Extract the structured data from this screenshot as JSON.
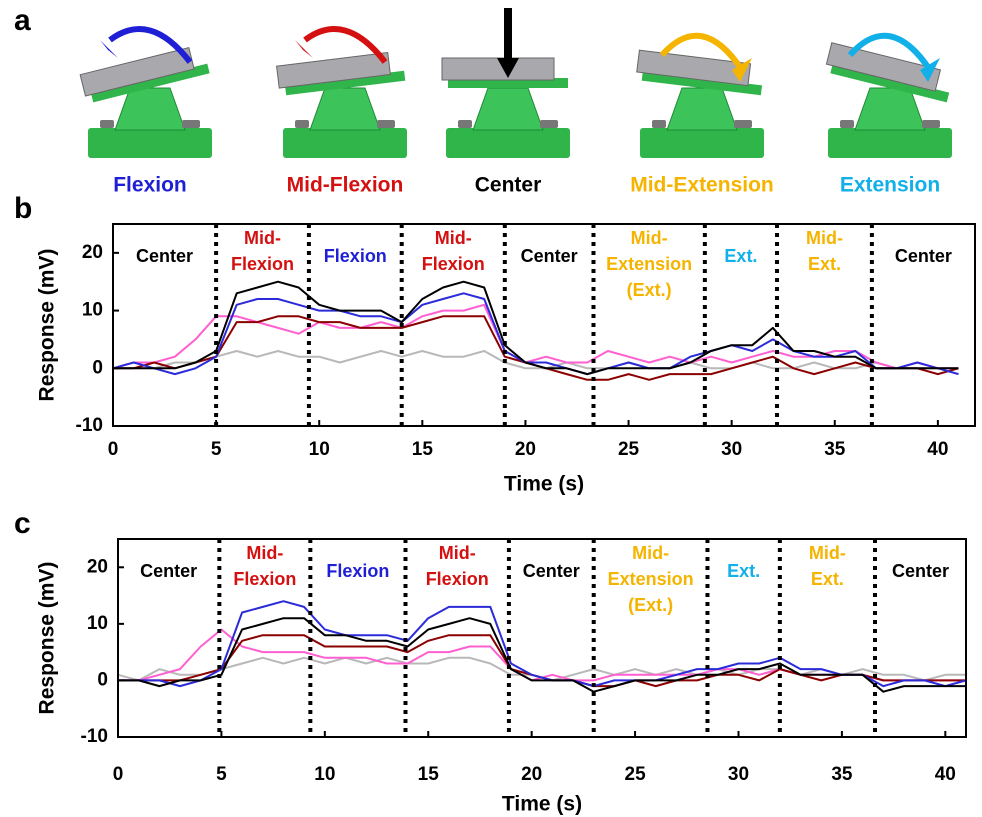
{
  "panel_a": {
    "label": "a",
    "items": [
      {
        "caption": "Flexion",
        "color": "#1f1fd6"
      },
      {
        "caption": "Mid-Flexion",
        "color": "#d41010"
      },
      {
        "caption": "Center",
        "color": "#000000"
      },
      {
        "caption": "Mid-Extension",
        "color": "#f5b400"
      },
      {
        "caption": "Extension",
        "color": "#12b0e8"
      }
    ]
  },
  "chart_data": [
    {
      "type": "line",
      "panel_label": "b",
      "xlabel": "Time (s)",
      "ylabel": "Response (mV)",
      "xlim": [
        0,
        41.8
      ],
      "ylim": [
        -10,
        25
      ],
      "xticks": [
        0,
        5,
        10,
        15,
        20,
        25,
        30,
        35,
        40
      ],
      "yticks": [
        -10,
        0,
        10,
        20
      ],
      "dividers": [
        5,
        9.5,
        14,
        19,
        23.3,
        28.7,
        32.2,
        36.8
      ],
      "regions": [
        {
          "lines": [
            "Center"
          ],
          "color": "#000000"
        },
        {
          "lines": [
            "Mid-",
            "Flexion"
          ],
          "color": "#d41010"
        },
        {
          "lines": [
            "Flexion"
          ],
          "color": "#1f1fd6"
        },
        {
          "lines": [
            "Mid-",
            "Flexion"
          ],
          "color": "#d41010"
        },
        {
          "lines": [
            "Center"
          ],
          "color": "#000000"
        },
        {
          "lines": [
            "Mid-",
            "Extension",
            "(Ext.)"
          ],
          "color": "#f5b400"
        },
        {
          "lines": [
            "Ext."
          ],
          "color": "#12b0e8"
        },
        {
          "lines": [
            "Mid-",
            "Ext."
          ],
          "color": "#f5b400"
        },
        {
          "lines": [
            "Center"
          ],
          "color": "#000000"
        }
      ],
      "x": [
        0,
        1,
        2,
        3,
        4,
        5,
        6,
        7,
        8,
        9,
        10,
        11,
        12,
        13,
        14,
        15,
        16,
        17,
        18,
        19,
        20,
        21,
        22,
        23,
        24,
        25,
        26,
        27,
        28,
        29,
        30,
        31,
        32,
        33,
        34,
        35,
        36,
        37,
        38,
        39,
        40,
        41
      ],
      "series": [
        {
          "color": "#b8b8b8",
          "values": [
            0,
            0,
            0,
            1,
            1,
            2,
            3,
            2,
            3,
            2,
            2,
            1,
            2,
            3,
            2,
            3,
            2,
            2,
            3,
            1,
            0,
            0,
            1,
            0,
            0,
            1,
            0,
            0,
            1,
            0,
            0,
            1,
            0,
            0,
            1,
            0,
            0,
            1,
            0,
            0,
            0,
            0
          ]
        },
        {
          "color": "#ff5fd0",
          "values": [
            0,
            1,
            1,
            2,
            5,
            9,
            9,
            8,
            7,
            6,
            8,
            7,
            7,
            8,
            7,
            9,
            10,
            10,
            11,
            3,
            1,
            2,
            1,
            1,
            3,
            2,
            1,
            2,
            1,
            2,
            1,
            2,
            3,
            2,
            2,
            3,
            3,
            1,
            0,
            1,
            0,
            0
          ]
        },
        {
          "color": "#8b0000",
          "values": [
            0,
            0,
            1,
            0,
            1,
            2,
            8,
            8,
            9,
            9,
            8,
            8,
            7,
            7,
            7,
            8,
            9,
            9,
            9,
            2,
            1,
            0,
            -1,
            -2,
            -2,
            -1,
            -2,
            -1,
            -1,
            -1,
            0,
            1,
            2,
            0,
            -1,
            0,
            1,
            0,
            0,
            0,
            -1,
            0
          ]
        },
        {
          "color": "#2b2bd9",
          "values": [
            0,
            1,
            0,
            -1,
            0,
            2,
            11,
            12,
            12,
            11,
            10,
            10,
            9,
            9,
            8,
            11,
            12,
            13,
            12,
            3,
            1,
            1,
            0,
            -1,
            0,
            1,
            0,
            0,
            2,
            3,
            4,
            3,
            5,
            3,
            2,
            2,
            3,
            0,
            0,
            1,
            0,
            -1
          ]
        },
        {
          "color": "#000000",
          "values": [
            0,
            0,
            0,
            0,
            1,
            3,
            13,
            14,
            15,
            14,
            11,
            10,
            10,
            10,
            8,
            12,
            14,
            15,
            14,
            4,
            1,
            0,
            0,
            -1,
            0,
            0,
            0,
            0,
            1,
            3,
            4,
            4,
            7,
            3,
            3,
            2,
            2,
            0,
            0,
            0,
            0,
            0
          ]
        }
      ]
    },
    {
      "type": "line",
      "panel_label": "c",
      "xlabel": "Time (s)",
      "ylabel": "Response (mV)",
      "xlim": [
        0,
        41
      ],
      "ylim": [
        -10,
        25
      ],
      "xticks": [
        0,
        5,
        10,
        15,
        20,
        25,
        30,
        35,
        40
      ],
      "yticks": [
        -10,
        0,
        10,
        20
      ],
      "dividers": [
        4.9,
        9.3,
        13.9,
        18.9,
        23,
        28.5,
        32,
        36.6
      ],
      "regions": [
        {
          "lines": [
            "Center"
          ],
          "color": "#000000"
        },
        {
          "lines": [
            "Mid-",
            "Flexion"
          ],
          "color": "#d41010"
        },
        {
          "lines": [
            "Flexion"
          ],
          "color": "#1f1fd6"
        },
        {
          "lines": [
            "Mid-",
            "Flexion"
          ],
          "color": "#d41010"
        },
        {
          "lines": [
            "Center"
          ],
          "color": "#000000"
        },
        {
          "lines": [
            "Mid-",
            "Extension",
            "(Ext.)"
          ],
          "color": "#f5b400"
        },
        {
          "lines": [
            "Ext."
          ],
          "color": "#12b0e8"
        },
        {
          "lines": [
            "Mid-",
            "Ext."
          ],
          "color": "#f5b400"
        },
        {
          "lines": [
            "Center"
          ],
          "color": "#000000"
        }
      ],
      "x": [
        0,
        1,
        2,
        3,
        4,
        5,
        6,
        7,
        8,
        9,
        10,
        11,
        12,
        13,
        14,
        15,
        16,
        17,
        18,
        19,
        20,
        21,
        22,
        23,
        24,
        25,
        26,
        27,
        28,
        29,
        30,
        31,
        32,
        33,
        34,
        35,
        36,
        37,
        38,
        39,
        40,
        41
      ],
      "series": [
        {
          "color": "#b8b8b8",
          "values": [
            1,
            0,
            2,
            1,
            1,
            2,
            3,
            4,
            3,
            4,
            3,
            4,
            3,
            4,
            3,
            3,
            4,
            4,
            3,
            1,
            1,
            0,
            1,
            2,
            1,
            2,
            1,
            2,
            1,
            2,
            1,
            2,
            2,
            1,
            2,
            1,
            2,
            1,
            1,
            0,
            1,
            1
          ]
        },
        {
          "color": "#ff5fd0",
          "values": [
            0,
            0,
            1,
            2,
            6,
            9,
            6,
            5,
            5,
            5,
            4,
            4,
            4,
            3,
            3,
            5,
            5,
            6,
            6,
            2,
            0,
            1,
            0,
            0,
            1,
            1,
            1,
            1,
            1,
            2,
            2,
            1,
            2,
            1,
            1,
            1,
            1,
            0,
            0,
            0,
            0,
            0
          ]
        },
        {
          "color": "#8b0000",
          "values": [
            0,
            0,
            0,
            0,
            1,
            2,
            7,
            8,
            8,
            8,
            6,
            6,
            6,
            6,
            5,
            7,
            8,
            8,
            8,
            2,
            1,
            0,
            0,
            -1,
            -1,
            0,
            -1,
            0,
            0,
            1,
            1,
            0,
            2,
            1,
            0,
            1,
            1,
            0,
            0,
            0,
            0,
            0
          ]
        },
        {
          "color": "#2b2bd9",
          "values": [
            0,
            0,
            0,
            -1,
            0,
            2,
            12,
            13,
            14,
            13,
            9,
            8,
            8,
            8,
            7,
            11,
            13,
            13,
            13,
            3,
            1,
            0,
            0,
            -1,
            0,
            0,
            0,
            1,
            2,
            2,
            3,
            3,
            4,
            2,
            2,
            1,
            1,
            -1,
            0,
            0,
            -1,
            0
          ]
        },
        {
          "color": "#000000",
          "values": [
            0,
            0,
            -1,
            0,
            0,
            1,
            9,
            10,
            11,
            11,
            8,
            8,
            7,
            7,
            6,
            9,
            10,
            11,
            10,
            2,
            0,
            0,
            0,
            -2,
            -1,
            0,
            0,
            0,
            1,
            1,
            2,
            2,
            3,
            1,
            1,
            1,
            1,
            -2,
            -1,
            -1,
            -1,
            -1
          ]
        }
      ]
    }
  ]
}
